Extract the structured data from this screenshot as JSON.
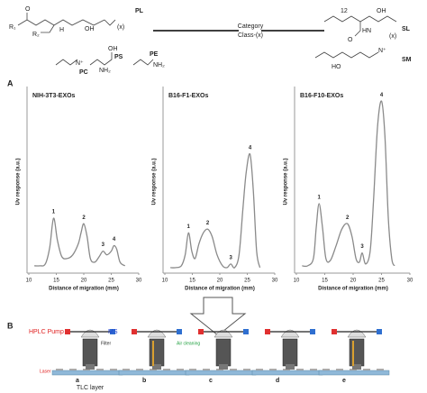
{
  "structures": {
    "labels": [
      "PL",
      "PC",
      "PS",
      "PE",
      "SL",
      "SM"
    ],
    "category": "Category",
    "class": "Class-(x)",
    "atoms": [
      "O",
      "R₁",
      "R₂",
      "H",
      "OH",
      "(x)",
      "N⁺",
      "OH",
      "NH₂",
      "NH₂",
      "12",
      "OH",
      "HN",
      "O",
      "(x)",
      "HO",
      "N⁺"
    ]
  },
  "panels": [
    "A",
    "B"
  ],
  "chart_data": [
    {
      "type": "line",
      "title": "NIH-3T3-EXOs",
      "xlabel": "Distance of migration (mm)",
      "ylabel": "Uv response (a.u.)",
      "x": [
        11,
        12,
        13,
        13.8,
        14.5,
        15.2,
        16,
        17,
        18,
        19,
        19.5,
        20,
        20.6,
        21.2,
        22,
        22.8,
        23.5,
        24.2,
        25,
        25.5,
        26,
        26.6,
        27.5
      ],
      "series": [
        {
          "color": "#8a8a8a",
          "values": [
            4,
            4,
            5,
            14,
            30,
            18,
            9,
            8,
            10,
            16,
            22,
            27,
            20,
            8,
            6,
            9,
            12,
            10,
            12,
            15,
            13,
            6,
            4
          ]
        }
      ],
      "xlim": [
        10,
        30
      ],
      "xticks": [
        10,
        15,
        20,
        25,
        30
      ],
      "ylim": [
        0,
        100
      ],
      "annotations": [
        {
          "text": "1",
          "x": 14.5,
          "y": 30
        },
        {
          "text": "2",
          "x": 20,
          "y": 27
        },
        {
          "text": "3",
          "x": 23.5,
          "y": 12
        },
        {
          "text": "4",
          "x": 25.5,
          "y": 15
        }
      ]
    },
    {
      "type": "line",
      "title": "B16-F1-EXOs",
      "xlabel": "Distance of migration (mm)",
      "ylabel": "Uv response (a.u.)",
      "x": [
        11,
        12,
        13,
        13.7,
        14.3,
        14.9,
        15.5,
        16.2,
        17,
        17.8,
        18.6,
        19.5,
        20.5,
        21.3,
        22,
        22.7,
        23.5,
        24.2,
        24.8,
        25.5,
        26.1,
        26.7,
        27.3
      ],
      "series": [
        {
          "color": "#8a8a8a",
          "values": [
            3,
            3,
            4,
            10,
            22,
            12,
            8,
            16,
            22,
            24,
            20,
            10,
            4,
            3,
            5,
            3,
            10,
            35,
            55,
            65,
            45,
            12,
            3
          ]
        }
      ],
      "xlim": [
        10,
        30
      ],
      "xticks": [
        10,
        15,
        20,
        25,
        30
      ],
      "ylim": [
        0,
        100
      ],
      "annotations": [
        {
          "text": "1",
          "x": 14.3,
          "y": 22
        },
        {
          "text": "2",
          "x": 17.8,
          "y": 24
        },
        {
          "text": "3",
          "x": 22,
          "y": 5
        },
        {
          "text": "4",
          "x": 25.5,
          "y": 65
        }
      ]
    },
    {
      "type": "line",
      "title": "B16-F10-EXOs",
      "xlabel": "Distance of migration (mm)",
      "ylabel": "Uv response (a.u.)",
      "x": [
        11,
        12,
        13,
        13.5,
        14,
        14.6,
        15.2,
        16,
        17,
        18,
        19,
        19.8,
        20.5,
        21.1,
        21.6,
        22.2,
        23,
        23.6,
        24.3,
        25,
        25.6,
        26.2,
        26.8,
        27.3
      ],
      "series": [
        {
          "color": "#8a8a8a",
          "values": [
            4,
            4,
            8,
            25,
            38,
            25,
            8,
            7,
            15,
            24,
            27,
            20,
            8,
            6,
            11,
            5,
            12,
            40,
            80,
            94,
            75,
            30,
            8,
            4
          ]
        }
      ],
      "xlim": [
        10,
        30
      ],
      "xticks": [
        10,
        15,
        20,
        25,
        30
      ],
      "ylim": [
        0,
        100
      ],
      "annotations": [
        {
          "text": "1",
          "x": 14,
          "y": 38
        },
        {
          "text": "2",
          "x": 19,
          "y": 27
        },
        {
          "text": "3",
          "x": 21.6,
          "y": 11
        },
        {
          "text": "4",
          "x": 25,
          "y": 94
        }
      ]
    }
  ],
  "diagram": {
    "pump": "HPLC Pump",
    "ms": "MS",
    "filter": "Filter",
    "air": "Air cleaning",
    "laser": "Laser",
    "layer": "TLC layer",
    "steps": [
      "a",
      "b",
      "c",
      "d",
      "e"
    ]
  }
}
